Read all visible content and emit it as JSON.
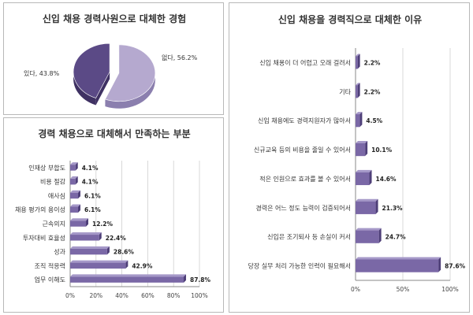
{
  "colors": {
    "dark": "#5b4a86",
    "dark_side": "#3f3163",
    "light": "#b5a9cf",
    "light_side": "#8b7fae",
    "bar": "#7a68a6",
    "bar_top": "#a598c8",
    "bar_side": "#4e3f78"
  },
  "chart_data": [
    {
      "type": "pie",
      "title": "신입 채용 경력사원으로 대체한 경험",
      "labels": [
        "없다",
        "있다"
      ],
      "values": [
        56.2,
        43.8
      ],
      "value_labels": [
        "없다, 56.2%",
        "있다, 43.8%"
      ]
    },
    {
      "type": "bar",
      "orientation": "horizontal",
      "title": "경력 채용으로 대체해서 만족하는 부분",
      "categories": [
        "인재상 부합도",
        "비용 절감",
        "애사심",
        "채용 평가의 용이성",
        "근속의지",
        "투자대비 효율성",
        "성과",
        "조직 적응력",
        "업무 이해도"
      ],
      "values": [
        4.1,
        4.1,
        6.1,
        6.1,
        12.2,
        22.4,
        28.6,
        42.9,
        87.8
      ],
      "value_labels": [
        "4.1%",
        "4.1%",
        "6.1%",
        "6.1%",
        "12.2%",
        "22.4%",
        "28.6%",
        "42.9%",
        "87.8%"
      ],
      "xlim": [
        0,
        100
      ],
      "ticks": [
        "0%",
        "20%",
        "40%",
        "60%",
        "80%",
        "100%"
      ]
    },
    {
      "type": "bar",
      "orientation": "horizontal",
      "title": "신입 채용을 경력직으로 대체한 이유",
      "categories": [
        "신입 채용이 더 어렵고 오래 걸려서",
        "기타",
        "신입 채용에도 경력지원자가 많아서",
        "신규교육 등의 비용을 줄일 수 있어서",
        "적은 인원으로 효과를 볼 수 있어서",
        "경력은 어느 정도 능력이 검증되어서",
        "신입은 조기퇴사 등 손실이 커서",
        "당장 실무 처리 가능한 인력이 필요해서"
      ],
      "values": [
        2.2,
        2.2,
        4.5,
        10.1,
        14.6,
        21.3,
        24.7,
        87.6
      ],
      "value_labels": [
        "2.2%",
        "2.2%",
        "4.5%",
        "10.1%",
        "14.6%",
        "21.3%",
        "24.7%",
        "87.6%"
      ],
      "xlim": [
        0,
        100
      ],
      "ticks": [
        "0%",
        "50%",
        "100%"
      ]
    }
  ]
}
